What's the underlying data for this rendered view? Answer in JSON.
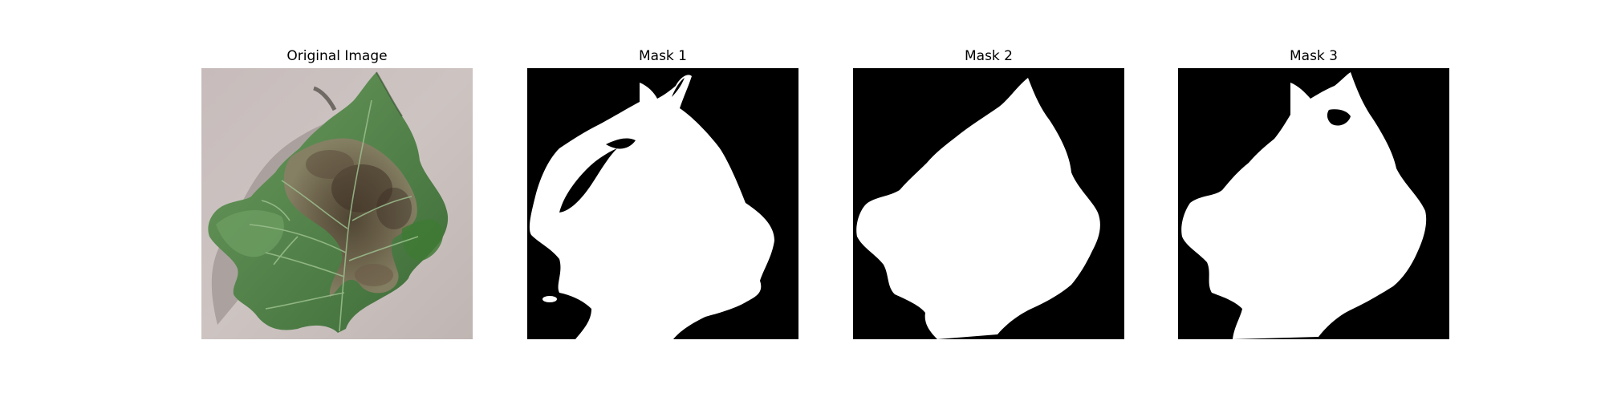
{
  "panels": [
    {
      "title": "Original Image"
    },
    {
      "title": "Mask 1"
    },
    {
      "title": "Mask 2"
    },
    {
      "title": "Mask 3"
    }
  ],
  "colors": {
    "background": "#ffffff",
    "mask_background": "#000000",
    "mask_foreground": "#ffffff",
    "photo_backdrop": "#c9bfbd",
    "leaf_green": "#5c8a4f",
    "leaf_dark_green": "#3f6a38",
    "lesion_brown": "#6b5a47"
  }
}
